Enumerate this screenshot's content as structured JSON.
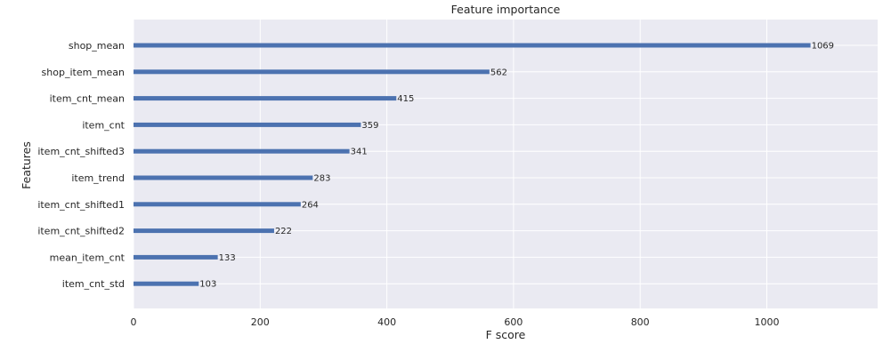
{
  "chart_data": {
    "type": "bar",
    "orientation": "horizontal",
    "title": "Feature importance",
    "xlabel": "F score",
    "ylabel": "Features",
    "categories": [
      "shop_mean",
      "shop_item_mean",
      "item_cnt_mean",
      "item_cnt",
      "item_cnt_shifted3",
      "item_trend",
      "item_cnt_shifted1",
      "item_cnt_shifted2",
      "mean_item_cnt",
      "item_cnt_std"
    ],
    "values": [
      1069,
      562,
      415,
      359,
      341,
      283,
      264,
      222,
      133,
      103
    ],
    "xlim": [
      0,
      1175
    ],
    "xticks": [
      0,
      200,
      400,
      600,
      800,
      1000
    ],
    "grid": true,
    "colors": {
      "bar": "#4c72b0",
      "plot_background": "#eaeaf2",
      "grid": "#ffffff",
      "text": "#262626"
    }
  }
}
